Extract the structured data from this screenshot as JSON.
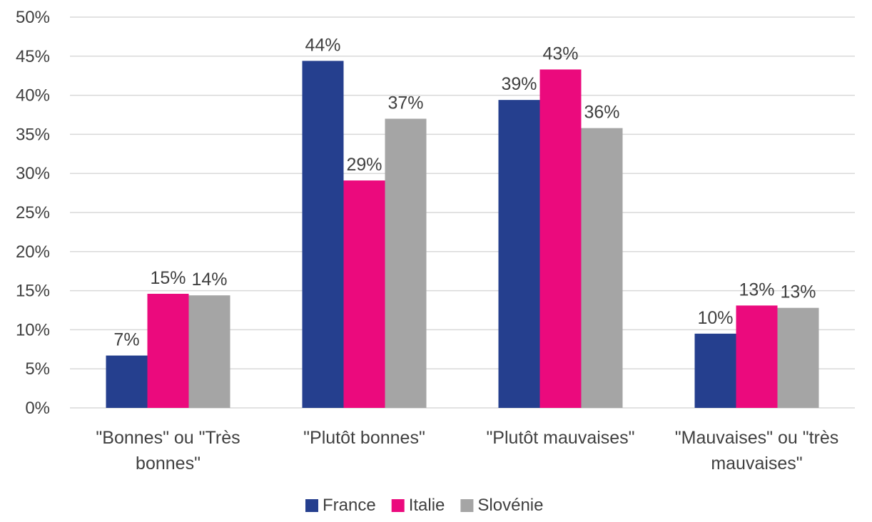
{
  "chart_data": {
    "type": "bar",
    "categories": [
      [
        "\"Bonnes\" ou \"Très",
        "bonnes\""
      ],
      [
        "\"Plutôt bonnes\""
      ],
      [
        "\"Plutôt mauvaises\""
      ],
      [
        "\"Mauvaises\" ou \"très",
        "mauvaises\""
      ]
    ],
    "series": [
      {
        "name": "France",
        "color": "#253f8e",
        "values": [
          6.7,
          44.4,
          39.4,
          9.5
        ],
        "labels": [
          "7%",
          "44%",
          "39%",
          "10%"
        ]
      },
      {
        "name": "Italie",
        "color": "#eb0a7d",
        "values": [
          14.6,
          29.1,
          43.3,
          13.1
        ],
        "labels": [
          "15%",
          "29%",
          "43%",
          "13%"
        ]
      },
      {
        "name": "Slovénie",
        "color": "#a5a5a5",
        "values": [
          14.4,
          37.0,
          35.8,
          12.8
        ],
        "labels": [
          "14%",
          "37%",
          "36%",
          "13%"
        ]
      }
    ],
    "ylim": [
      0,
      50
    ],
    "yticks": [
      "0%",
      "5%",
      "10%",
      "15%",
      "20%",
      "25%",
      "30%",
      "35%",
      "40%",
      "45%",
      "50%"
    ],
    "grid": true,
    "legend_position": "bottom"
  }
}
